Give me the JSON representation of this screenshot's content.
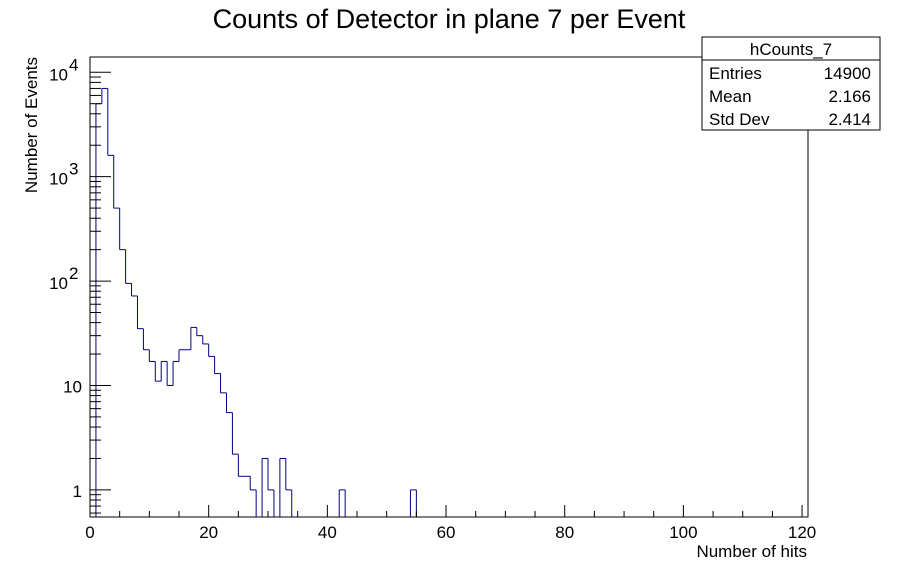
{
  "chart_data": {
    "type": "bar",
    "title": "Counts of Detector in plane 7 per Event",
    "xlabel": "Number of hits",
    "ylabel": "Number of Events",
    "xlim": [
      0,
      121
    ],
    "ylim": [
      0.55,
      14000
    ],
    "y_scale": "log",
    "grid": false,
    "bin_width": 1,
    "x_ticks": [
      0,
      20,
      40,
      60,
      80,
      100,
      120
    ],
    "x_tick_labels": [
      "0",
      "20",
      "40",
      "60",
      "80",
      "100",
      "120"
    ],
    "y_ticks": [
      {
        "value": 1,
        "label": "1",
        "exp": ""
      },
      {
        "value": 10,
        "label": "10",
        "exp": ""
      },
      {
        "value": 100,
        "label": "10",
        "exp": "2"
      },
      {
        "value": 1000,
        "label": "10",
        "exp": "3"
      },
      {
        "value": 10000,
        "label": "10",
        "exp": "4"
      }
    ],
    "series": [
      {
        "color": "#000080",
        "x": [
          0,
          1,
          2,
          3,
          4,
          5,
          6,
          7,
          8,
          9,
          10,
          11,
          12,
          13,
          14,
          15,
          16,
          17,
          18,
          19,
          20,
          21,
          22,
          23,
          24,
          25,
          26,
          27,
          28,
          29,
          30,
          31,
          32,
          33,
          42,
          54
        ],
        "values": [
          0.55,
          5000,
          7000,
          1600,
          500,
          200,
          95,
          72,
          35,
          22,
          17,
          11,
          17,
          10,
          17,
          22,
          22,
          36,
          30,
          25,
          19,
          13,
          8.5,
          5.5,
          2.2,
          1.35,
          1.35,
          1,
          0.55,
          2,
          1,
          0.55,
          2,
          1,
          1,
          1
        ]
      }
    ],
    "stats_box": {
      "name": "hCounts_7",
      "rows": [
        {
          "label": "Entries",
          "value": "14900"
        },
        {
          "label": "Mean",
          "value": "2.166"
        },
        {
          "label": "Std Dev",
          "value": "2.414"
        }
      ]
    }
  }
}
